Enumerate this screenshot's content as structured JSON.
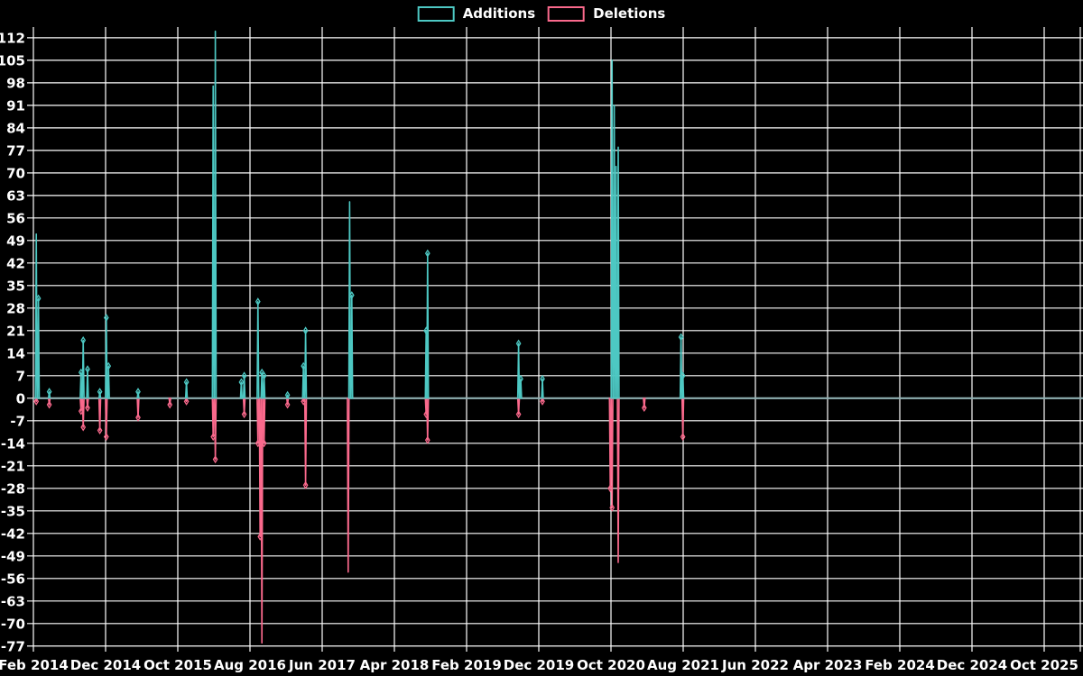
{
  "legend": {
    "items": [
      {
        "label": "Additions",
        "color": "#4dc8c3"
      },
      {
        "label": "Deletions",
        "color": "#fa698c"
      }
    ]
  },
  "chart_data": {
    "type": "line",
    "title": "",
    "xlabel": "",
    "ylabel": "",
    "grid": true,
    "legend_position": "top-center",
    "background_color": "#000000",
    "grid_color": "#ffffff",
    "text_color": "#ffffff",
    "baseline_value": 0,
    "baseline_color": "#8fb0b2",
    "x_axis": {
      "tick_labels": [
        "Feb 2014",
        "Dec 2014",
        "Oct 2015",
        "Aug 2016",
        "Jun 2017",
        "Apr 2018",
        "Feb 2019",
        "Dec 2019",
        "Oct 2020",
        "Aug 2021",
        "Jun 2022",
        "Apr 2023",
        "Feb 2024",
        "Dec 2024",
        "Oct 2025"
      ],
      "tick_month_offsets": [
        0,
        10,
        20,
        30,
        40,
        50,
        60,
        70,
        80,
        90,
        100,
        110,
        120,
        130,
        140
      ],
      "origin_label": "Feb 2014",
      "months_visible": 145.4
    },
    "y_axis": {
      "tick_values": [
        112,
        105,
        98,
        91,
        84,
        77,
        70,
        63,
        56,
        49,
        42,
        35,
        28,
        21,
        14,
        7,
        0,
        -7,
        -14,
        -21,
        -28,
        -35,
        -42,
        -49,
        -56,
        -63,
        -70,
        -77
      ],
      "tick_step": 7,
      "ylim": [
        -79.3,
        114.2
      ]
    },
    "series": [
      {
        "name": "Additions",
        "color": "#4dc8c3",
        "points": [
          {
            "t": 0.4,
            "date": "2014-02",
            "v": 51
          },
          {
            "t": 0.7,
            "date": "2014-03",
            "v": 31
          },
          {
            "t": 2.2,
            "date": "2014-04",
            "v": 2
          },
          {
            "t": 6.6,
            "date": "2014-08",
            "v": 8
          },
          {
            "t": 6.9,
            "date": "2014-09",
            "v": 18
          },
          {
            "t": 7.5,
            "date": "2014-09",
            "v": 9
          },
          {
            "t": 9.2,
            "date": "2014-11",
            "v": 2
          },
          {
            "t": 10.1,
            "date": "2014-12",
            "v": 25
          },
          {
            "t": 10.4,
            "date": "2014-12",
            "v": 10
          },
          {
            "t": 14.5,
            "date": "2015-04",
            "v": 2
          },
          {
            "t": 21.2,
            "date": "2015-11",
            "v": 5
          },
          {
            "t": 24.9,
            "date": "2016-03",
            "v": 97
          },
          {
            "t": 25.2,
            "date": "2016-03",
            "v": 114
          },
          {
            "t": 28.8,
            "date": "2016-07",
            "v": 5
          },
          {
            "t": 29.2,
            "date": "2016-07",
            "v": 7
          },
          {
            "t": 31.1,
            "date": "2016-09",
            "v": 30
          },
          {
            "t": 31.65,
            "date": "2016-10",
            "v": 8
          },
          {
            "t": 31.95,
            "date": "2016-10",
            "v": 7
          },
          {
            "t": 35.2,
            "date": "2017-01",
            "v": 1
          },
          {
            "t": 37.4,
            "date": "2017-03",
            "v": 10
          },
          {
            "t": 37.7,
            "date": "2017-04",
            "v": 21
          },
          {
            "t": 43.8,
            "date": "2017-10",
            "v": 61
          },
          {
            "t": 44.1,
            "date": "2017-10",
            "v": 32
          },
          {
            "t": 54.4,
            "date": "2018-08",
            "v": 21
          },
          {
            "t": 54.6,
            "date": "2018-09",
            "v": 45
          },
          {
            "t": 67.2,
            "date": "2019-09",
            "v": 17
          },
          {
            "t": 67.5,
            "date": "2019-09",
            "v": 6
          },
          {
            "t": 70.5,
            "date": "2019-12",
            "v": 6
          },
          {
            "t": 80.15,
            "date": "2020-10",
            "v": 105
          },
          {
            "t": 80.45,
            "date": "2020-10",
            "v": 91
          },
          {
            "t": 80.7,
            "date": "2020-11",
            "v": 72
          },
          {
            "t": 81.0,
            "date": "2020-11",
            "v": 78
          },
          {
            "t": 89.7,
            "date": "2021-08",
            "v": 19
          },
          {
            "t": 89.95,
            "date": "2021-08",
            "v": 7
          }
        ]
      },
      {
        "name": "Deletions",
        "color": "#fa698c",
        "points": [
          {
            "t": 0.4,
            "date": "2014-02",
            "v": -1
          },
          {
            "t": 2.2,
            "date": "2014-04",
            "v": -2
          },
          {
            "t": 6.6,
            "date": "2014-08",
            "v": -4
          },
          {
            "t": 6.9,
            "date": "2014-09",
            "v": -9
          },
          {
            "t": 7.5,
            "date": "2014-09",
            "v": -3
          },
          {
            "t": 9.2,
            "date": "2014-11",
            "v": -10
          },
          {
            "t": 10.1,
            "date": "2014-12",
            "v": -12
          },
          {
            "t": 14.5,
            "date": "2015-04",
            "v": -6
          },
          {
            "t": 18.9,
            "date": "2015-09",
            "v": -2
          },
          {
            "t": 21.2,
            "date": "2015-11",
            "v": -1
          },
          {
            "t": 24.9,
            "date": "2016-03",
            "v": -12
          },
          {
            "t": 25.2,
            "date": "2016-03",
            "v": -19
          },
          {
            "t": 29.2,
            "date": "2016-07",
            "v": -5
          },
          {
            "t": 31.1,
            "date": "2016-09",
            "v": -14
          },
          {
            "t": 31.4,
            "date": "2016-09",
            "v": -43
          },
          {
            "t": 31.65,
            "date": "2016-10",
            "v": -76
          },
          {
            "t": 31.95,
            "date": "2016-10",
            "v": -14
          },
          {
            "t": 35.2,
            "date": "2017-01",
            "v": -2
          },
          {
            "t": 37.4,
            "date": "2017-03",
            "v": -1
          },
          {
            "t": 37.7,
            "date": "2017-04",
            "v": -27
          },
          {
            "t": 43.6,
            "date": "2017-09",
            "v": -54
          },
          {
            "t": 54.4,
            "date": "2018-08",
            "v": -5
          },
          {
            "t": 54.6,
            "date": "2018-09",
            "v": -13
          },
          {
            "t": 67.2,
            "date": "2019-09",
            "v": -5
          },
          {
            "t": 70.5,
            "date": "2019-12",
            "v": -1
          },
          {
            "t": 79.9,
            "date": "2020-10",
            "v": -28
          },
          {
            "t": 80.15,
            "date": "2020-10",
            "v": -34
          },
          {
            "t": 81.0,
            "date": "2020-11",
            "v": -51
          },
          {
            "t": 84.6,
            "date": "2021-02",
            "v": -3
          },
          {
            "t": 89.95,
            "date": "2021-08",
            "v": -12
          }
        ]
      }
    ]
  }
}
